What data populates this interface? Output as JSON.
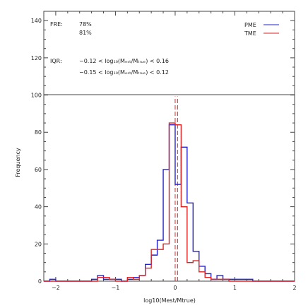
{
  "chart_data": {
    "type": "histogram",
    "xlabel": "log10(Mest/Mtrue)",
    "ylabel": "Frequency",
    "xlim": [
      -2.2,
      2.0
    ],
    "ylim": [
      0,
      145
    ],
    "xticks": [
      -2,
      -1,
      0,
      1,
      2
    ],
    "yticks": [
      0,
      20,
      40,
      60,
      80,
      100,
      120,
      140
    ],
    "bin_edges": [
      -2.2,
      -2.1,
      -2.0,
      -1.9,
      -1.8,
      -1.7,
      -1.6,
      -1.5,
      -1.4,
      -1.3,
      -1.2,
      -1.1,
      -1.0,
      -0.9,
      -0.8,
      -0.7,
      -0.6,
      -0.5,
      -0.4,
      -0.3,
      -0.2,
      -0.1,
      0.0,
      0.1,
      0.2,
      0.3,
      0.4,
      0.5,
      0.6,
      0.7,
      0.8,
      0.9,
      1.0,
      1.1,
      1.2,
      1.3,
      1.4,
      1.5,
      1.6,
      1.7,
      1.8,
      1.9,
      2.0
    ],
    "series": [
      {
        "name": "PME",
        "color": "#2222cc",
        "counts": [
          0,
          1,
          0,
          0,
          0,
          0,
          0,
          0,
          1,
          3,
          1,
          1,
          1,
          0,
          1,
          2,
          3,
          9,
          14,
          22,
          60,
          84,
          52,
          72,
          42,
          16,
          8,
          4,
          1,
          3,
          1,
          1,
          1,
          1,
          1,
          0,
          0,
          0,
          0,
          0,
          0,
          0
        ]
      },
      {
        "name": "TME",
        "color": "#dd2222",
        "counts": [
          0,
          0,
          0,
          0,
          0,
          0,
          0,
          0,
          0,
          2,
          2,
          1,
          0,
          0,
          2,
          1,
          3,
          7,
          17,
          17,
          20,
          85,
          84,
          40,
          10,
          11,
          5,
          2,
          1,
          1,
          1,
          0,
          0,
          0,
          0,
          0,
          0,
          0,
          0,
          0,
          0,
          0
        ]
      }
    ],
    "reference_lines": [
      {
        "x": 0.0,
        "color": "#dd2222",
        "style": "dashed"
      },
      {
        "x": 0.04,
        "color": "#dd2222",
        "style": "dashed"
      }
    ],
    "legend": {
      "placement": "top-right",
      "entries": [
        {
          "label": "PME",
          "color": "#2222cc"
        },
        {
          "label": "TME",
          "color": "#dd2222"
        }
      ]
    },
    "annotations": {
      "fre_label": "FRE:",
      "fre_pme": "78%",
      "fre_tme": "81%",
      "iqr_label": "IQR:",
      "iqr_pme": "−0.12 < log₁₀(Mₑₛₜ/Mₜᵣᵤₑ) < 0.16",
      "iqr_tme": "−0.15 < log₁₀(Mₑₛₜ/Mₜᵣᵤₑ) < 0.12"
    }
  }
}
